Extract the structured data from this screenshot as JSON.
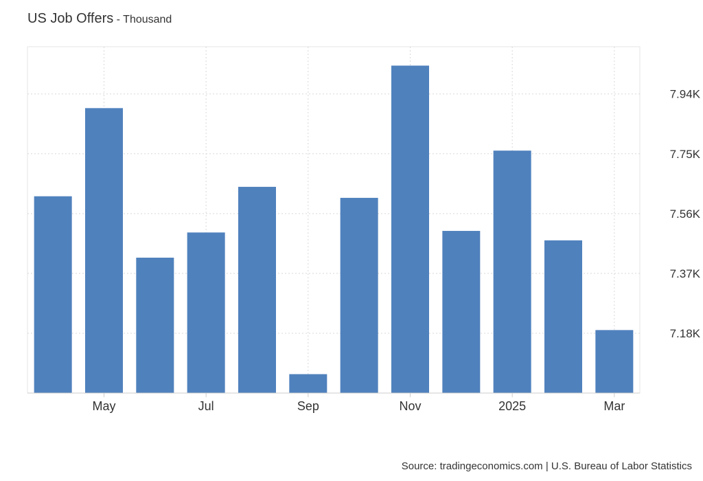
{
  "header": {
    "title": "US Job Offers",
    "subtitle": " - Thousand"
  },
  "footer": {
    "source": "Source: tradingeconomics.com | U.S. Bureau of Labor Statistics"
  },
  "chart_data": {
    "type": "bar",
    "title": "US Job Offers",
    "subtitle": "Thousand",
    "categories": [
      "2024-04",
      "2024-05",
      "2024-06",
      "2024-07",
      "2024-08",
      "2024-09",
      "2024-10",
      "2024-11",
      "2024-12",
      "2025-01",
      "2025-02",
      "2025-03"
    ],
    "x_tick_labels": [
      {
        "category_index": 1,
        "label": "May"
      },
      {
        "category_index": 3,
        "label": "Jul"
      },
      {
        "category_index": 5,
        "label": "Sep"
      },
      {
        "category_index": 7,
        "label": "Nov"
      },
      {
        "category_index": 9,
        "label": "2025"
      },
      {
        "category_index": 11,
        "label": "Mar"
      }
    ],
    "series": [
      {
        "values": [
          7.615,
          7.895,
          7.42,
          7.5,
          7.645,
          7.05,
          7.61,
          8.03,
          7.505,
          7.76,
          7.475,
          7.19
        ],
        "color": "#4f81bd"
      }
    ],
    "y_ticks": [
      {
        "value": 7.18,
        "label": "7.18K"
      },
      {
        "value": 7.37,
        "label": "7.37K"
      },
      {
        "value": 7.56,
        "label": "7.56K"
      },
      {
        "value": 7.75,
        "label": "7.75K"
      },
      {
        "value": 7.94,
        "label": "7.94K"
      }
    ],
    "ylim": [
      6.99,
      8.09
    ],
    "y_axis_position": "right",
    "grid": true,
    "legend": "none"
  }
}
